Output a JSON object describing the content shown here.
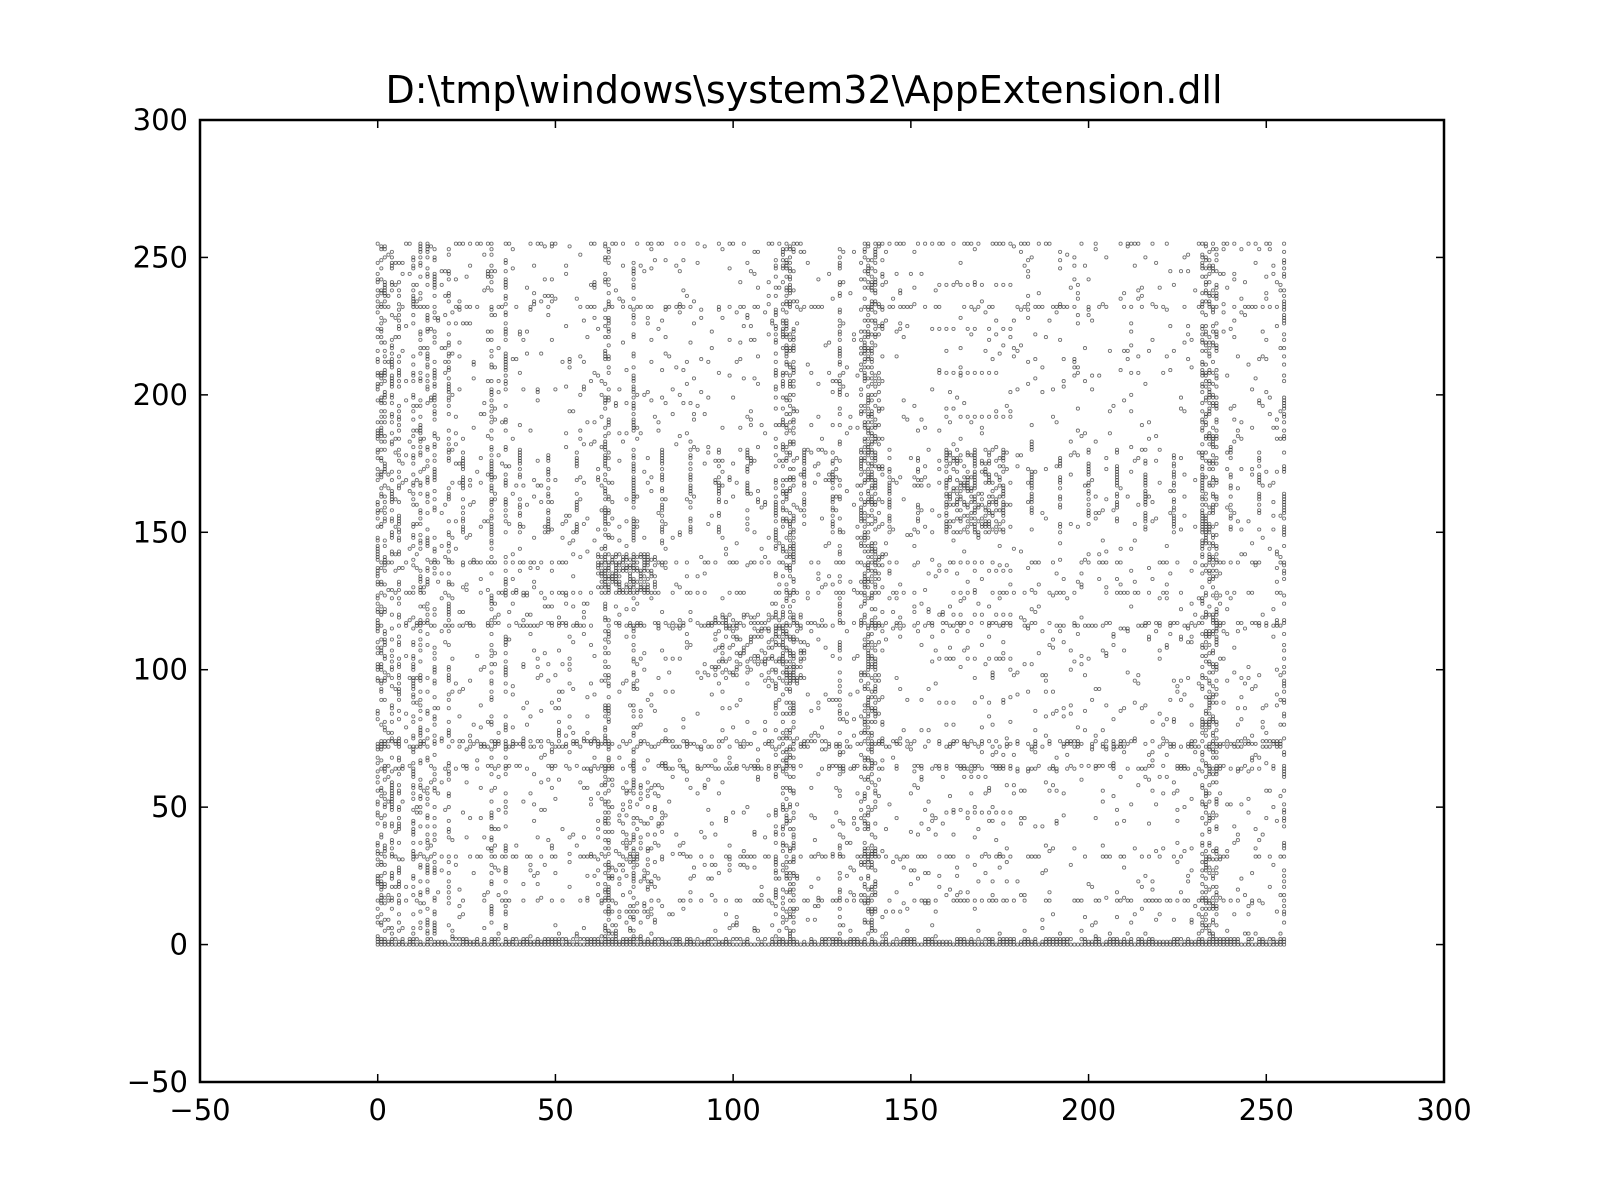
{
  "chart_data": {
    "type": "scatter",
    "title": "D:\\tmp\\windows\\system32\\AppExtension.dll",
    "xlabel": "",
    "ylabel": "",
    "xlim": [
      -50,
      300
    ],
    "ylim": [
      -50,
      300
    ],
    "xticks": [
      "−50",
      "0",
      "50",
      "100",
      "150",
      "200",
      "250",
      "300"
    ],
    "yticks": [
      "−50",
      "0",
      "50",
      "100",
      "150",
      "200",
      "250",
      "300"
    ],
    "xtick_values": [
      -50,
      0,
      50,
      100,
      150,
      200,
      250,
      300
    ],
    "ytick_values": [
      -50,
      0,
      50,
      100,
      150,
      200,
      250,
      300
    ],
    "grid": false,
    "marker": "hollow-circle",
    "color": "#000000",
    "data_extent": {
      "x": [
        0,
        255
      ],
      "y": [
        0,
        255
      ]
    },
    "dense_columns": [
      0,
      1,
      2,
      4,
      6,
      10,
      12,
      14,
      16,
      20,
      32,
      36,
      64,
      65,
      72,
      112,
      114,
      115,
      116,
      117,
      130,
      137,
      138,
      139,
      140,
      232,
      233,
      234,
      235,
      236,
      255
    ],
    "dense_rows": [
      0,
      1,
      2,
      16,
      32,
      64,
      65,
      72,
      73,
      74,
      116,
      117,
      128,
      139,
      232,
      255
    ],
    "clusters": [
      {
        "x": [
          95,
          120
        ],
        "y": [
          95,
          120
        ]
      },
      {
        "x": [
          62,
          78
        ],
        "y": [
          128,
          142
        ]
      },
      {
        "x": [
          62,
          80
        ],
        "y": [
          0,
          60
        ]
      },
      {
        "x": [
          136,
          142
        ],
        "y": [
          60,
          255
        ]
      },
      {
        "x": [
          160,
          175
        ],
        "y": [
          150,
          180
        ]
      }
    ],
    "banded_rows": [
      16,
      32,
      48,
      64,
      88,
      104,
      120,
      136,
      152,
      160,
      168,
      176,
      192,
      208,
      224,
      240
    ],
    "banded_x_range": [
      158,
      178
    ],
    "periodic_column_start": 24,
    "periodic_column_step": 8,
    "periodic_row_range": [
      150,
      180
    ]
  }
}
